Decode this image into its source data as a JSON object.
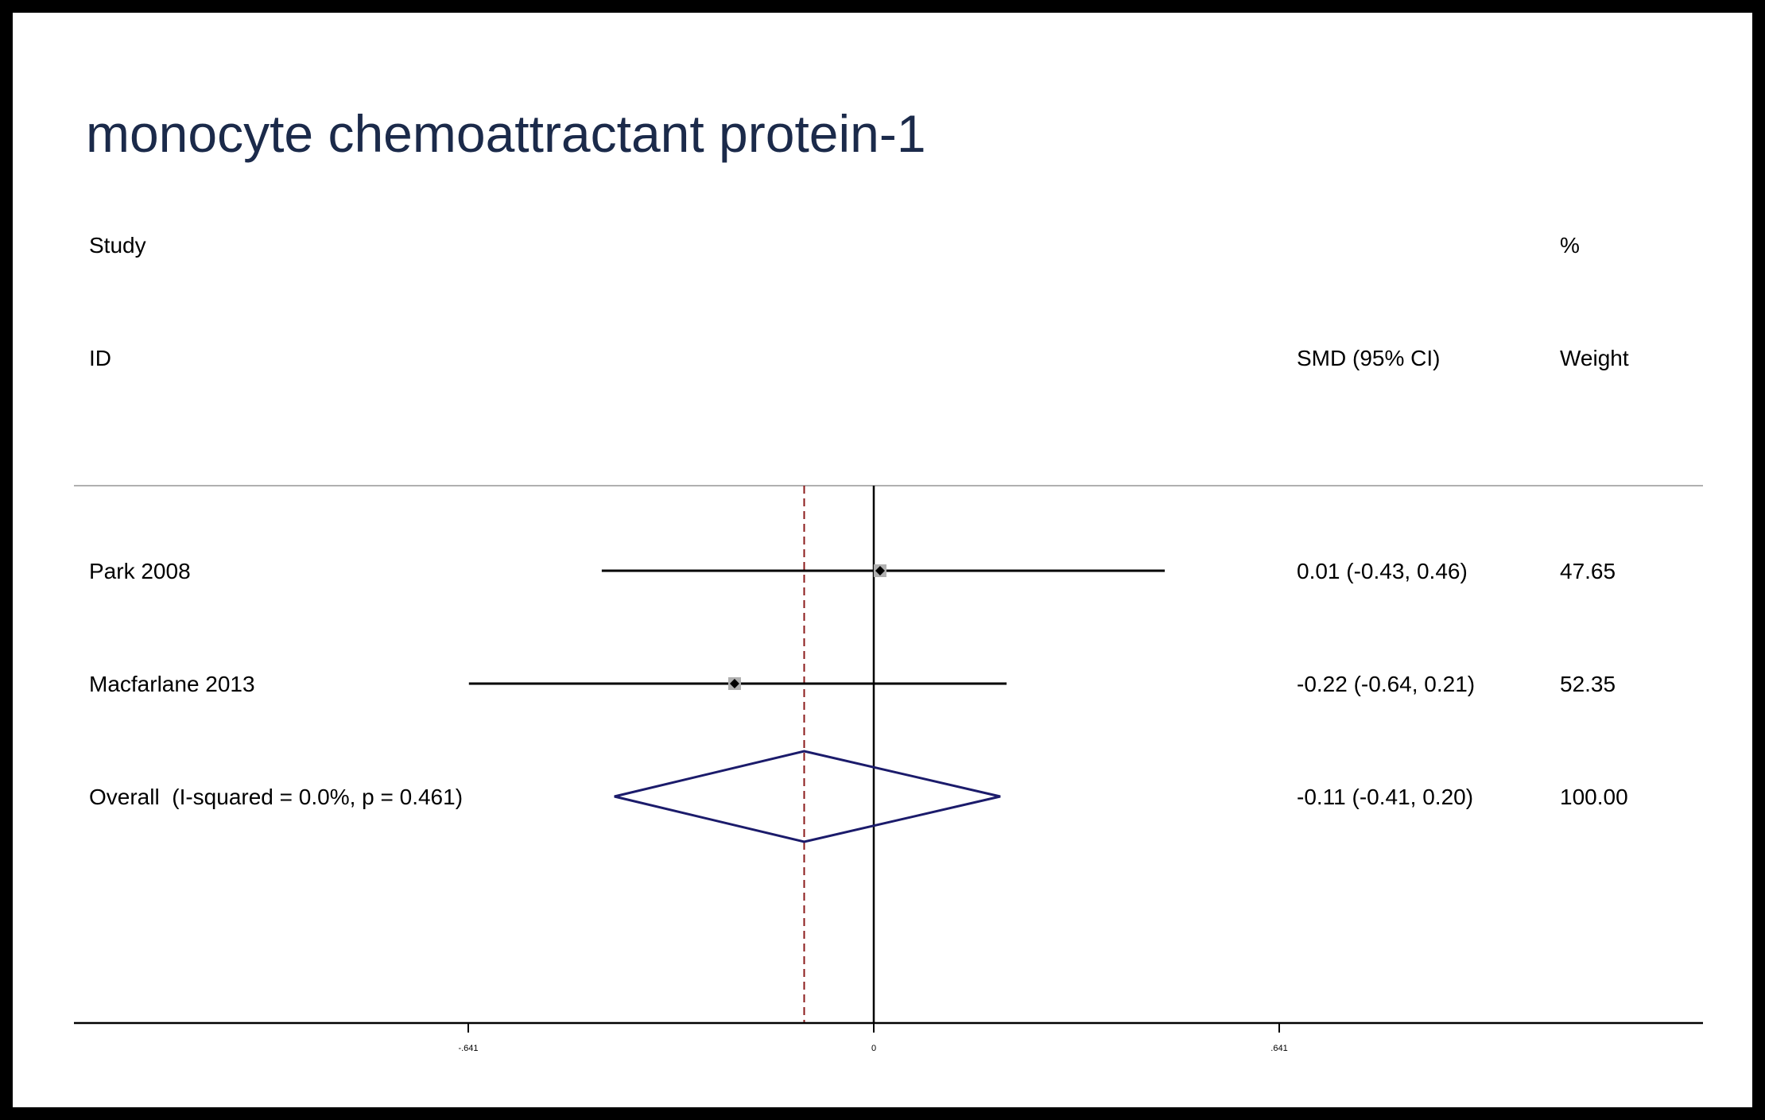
{
  "colors": {
    "frame": "#000000",
    "background": "#ffffff",
    "title": "#1b2a4a",
    "diamond": "#1b1b6b",
    "overall_line": "#8b1a1a",
    "separator": "#b0b0b0",
    "ci_line": "#000000",
    "weight_box": "#b0b0b0"
  },
  "chart_data": {
    "type": "forest",
    "title": "monocyte chemoattractant protein-1",
    "columns": {
      "study_header_line1": "Study",
      "study_header_line2": "ID",
      "effect_header": "SMD (95% CI)",
      "weight_header_line1": "%",
      "weight_header_line2": "Weight"
    },
    "xlim": [
      -1.0,
      1.0
    ],
    "null_line": 0,
    "ticks": [
      {
        "value": -0.641,
        "label": "-.641"
      },
      {
        "value": 0,
        "label": "0"
      },
      {
        "value": 0.641,
        "label": ".641"
      }
    ],
    "studies": [
      {
        "id": "Park 2008",
        "smd": 0.01,
        "ci_low": -0.43,
        "ci_high": 0.46,
        "effect_text": "0.01 (-0.43, 0.46)",
        "weight": "47.65"
      },
      {
        "id": "Macfarlane 2013",
        "smd": -0.22,
        "ci_low": -0.64,
        "ci_high": 0.21,
        "effect_text": "-0.22 (-0.64, 0.21)",
        "weight": "52.35"
      }
    ],
    "overall": {
      "label": "Overall  (I-squared = 0.0%, p = 0.461)",
      "smd": -0.11,
      "ci_low": -0.41,
      "ci_high": 0.2,
      "effect_text": "-0.11 (-0.41, 0.20)",
      "weight": "100.00"
    }
  }
}
